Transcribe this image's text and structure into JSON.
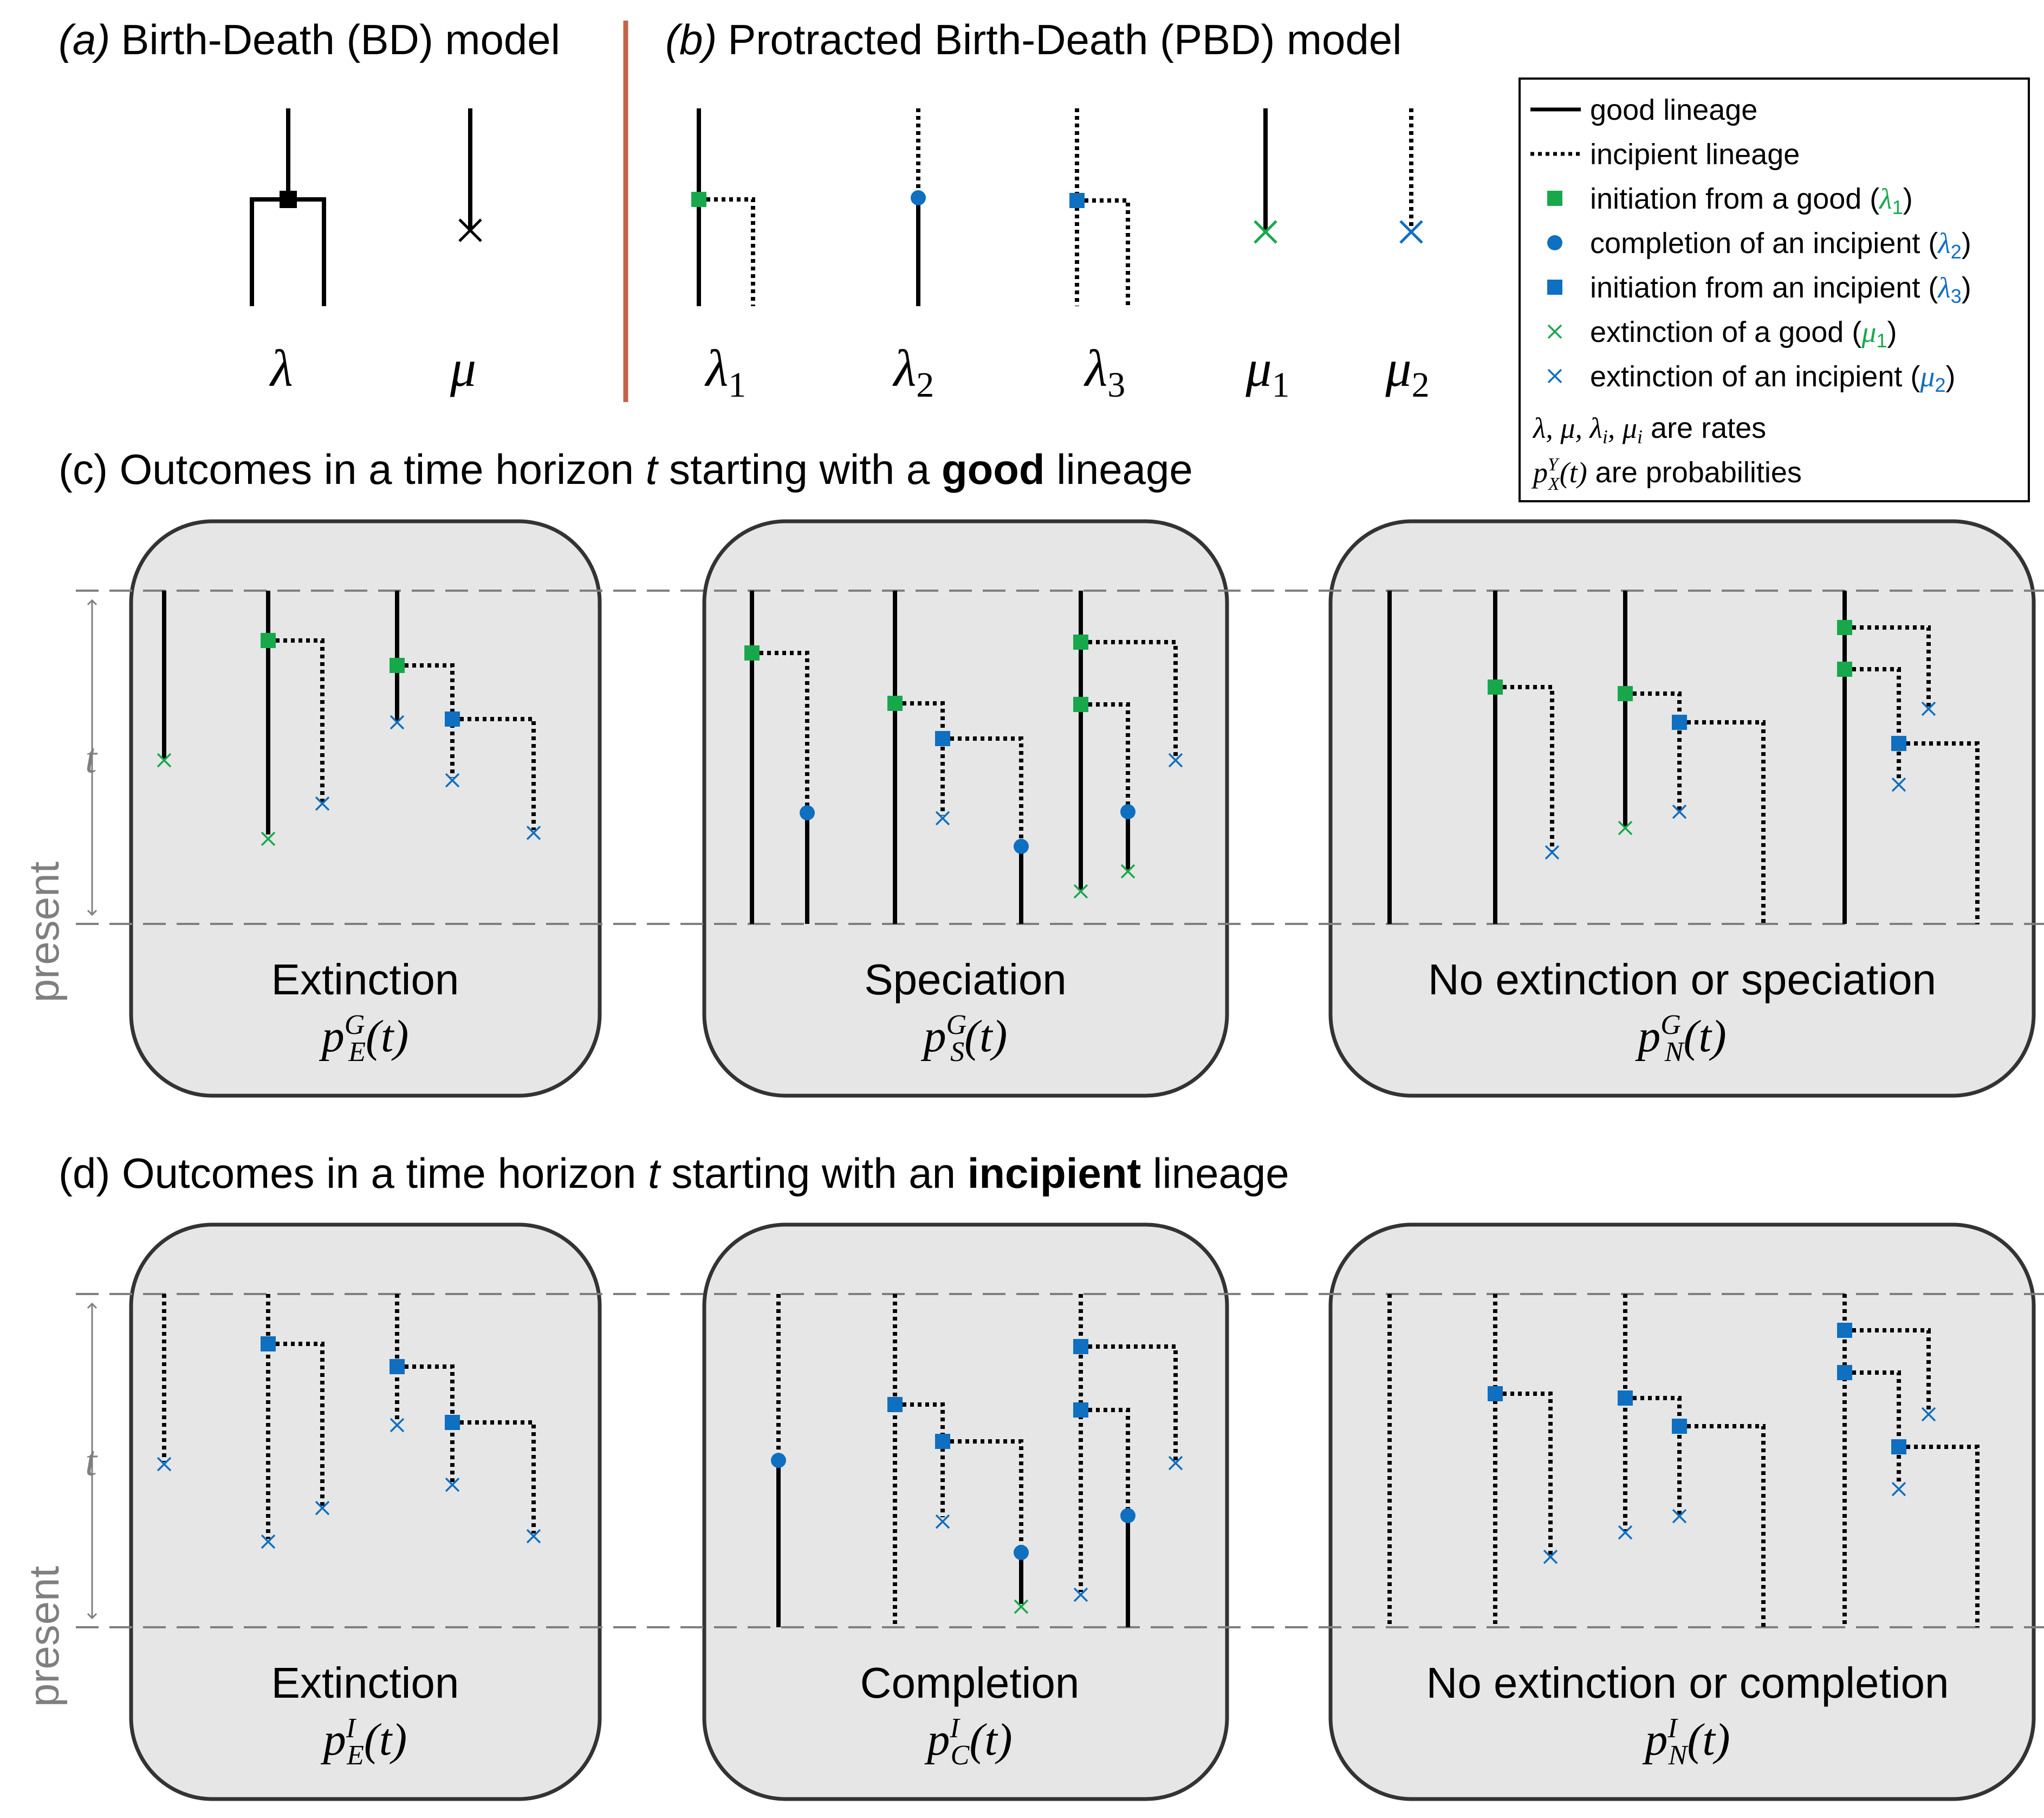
{
  "panel_a": {
    "label": "(a)",
    "title": "Birth-Death (BD) model",
    "rates": [
      "λ",
      "μ"
    ]
  },
  "panel_b": {
    "label": "(b)",
    "title": "Protracted Birth-Death (PBD) model",
    "rates": [
      {
        "sym": "λ",
        "sub": "1"
      },
      {
        "sym": "λ",
        "sub": "2"
      },
      {
        "sym": "λ",
        "sub": "3"
      },
      {
        "sym": "μ",
        "sub": "1"
      },
      {
        "sym": "μ",
        "sub": "2"
      }
    ]
  },
  "legend": {
    "items": [
      {
        "text": "good lineage",
        "sym": "",
        "sub": ""
      },
      {
        "text": "incipient lineage",
        "sym": "",
        "sub": ""
      },
      {
        "text": "initiation from a good (",
        "sym": "λ",
        "sub": "1"
      },
      {
        "text": "completion of an incipient (",
        "sym": "λ",
        "sub": "2"
      },
      {
        "text": "initiation from an incipient (",
        "sym": "λ",
        "sub": "3"
      },
      {
        "text": "extinction of a good (",
        "sym": "μ",
        "sub": "1"
      },
      {
        "text": "extinction of an incipient (",
        "sym": "μ",
        "sub": "2"
      }
    ],
    "note1_math": "λ, μ, λ",
    "note1_sub1": "i",
    "note1_mid": ", μ",
    "note1_sub2": "i",
    "note1_text": " are rates",
    "note2_p": "p",
    "note2_sub": "X",
    "note2_sup": "Y",
    "note2_arg": "(t)",
    "note2_text": " are probabilities"
  },
  "panel_c": {
    "pre": "(c) Outcomes in a time horizon ",
    "t": "t",
    "mid": " starting with a ",
    "bold": "good",
    "post": " lineage"
  },
  "panel_d": {
    "pre": "(d) Outcomes in a time horizon ",
    "t": "t",
    "mid": " starting with an ",
    "bold": "incipient",
    "post": " lineage"
  },
  "axis": {
    "t": "t",
    "present": "present"
  },
  "boxes_c": [
    {
      "title": "Extinction",
      "p": "p",
      "sub": "E",
      "sup": "G",
      "arg": "(t)"
    },
    {
      "title": "Speciation",
      "p": "p",
      "sub": "S",
      "sup": "G",
      "arg": "(t)"
    },
    {
      "title": "No extinction or speciation",
      "p": "p",
      "sub": "N",
      "sup": "G",
      "arg": "(t)"
    }
  ],
  "boxes_d": [
    {
      "title": "Extinction",
      "p": "p",
      "sub": "E",
      "sup": "I",
      "arg": "(t)"
    },
    {
      "title": "Completion",
      "p": "p",
      "sub": "C",
      "sup": "I",
      "arg": "(t)"
    },
    {
      "title": "No extinction or completion",
      "p": "p",
      "sub": "N",
      "sup": "I",
      "arg": "(t)"
    }
  ],
  "colors": {
    "green": "#17a84c",
    "blue": "#0f6fc0",
    "divider": "#c0644a",
    "box_fill": "#e6e6e6",
    "grey": "#7f7f7f"
  }
}
